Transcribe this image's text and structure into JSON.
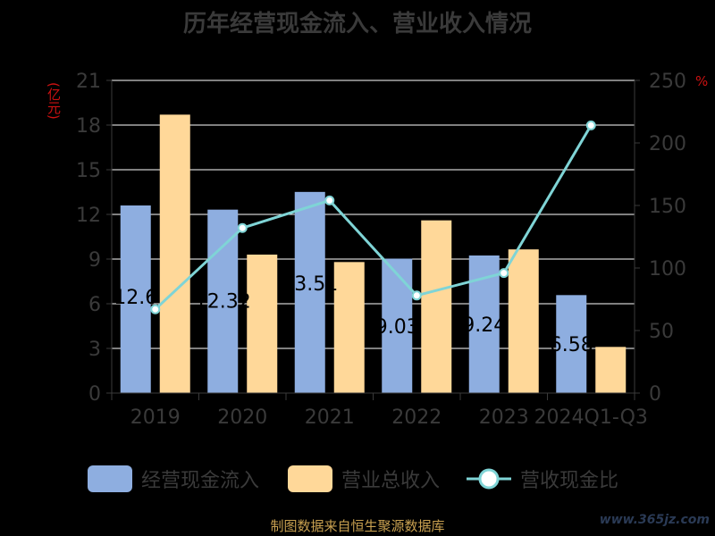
{
  "title": "历年经营现金流入、营业收入情况",
  "left_axis_label": "(亿元)",
  "right_axis_label": "%",
  "footer": "制图数据来自恒生聚源数据库",
  "watermark": "www.365jz.com",
  "colors": {
    "cash_inflow": "#8eaee0",
    "revenue": "#ffd899",
    "ratio": "#7fd4d6",
    "axis_text": "#3a3a3a",
    "grid": "#ffffff",
    "axis_label_red": "#cc1111"
  },
  "legend": [
    {
      "label": "经营现金流入",
      "kind": "bar",
      "color": "#8eaee0"
    },
    {
      "label": "营业总收入",
      "kind": "bar",
      "color": "#ffd899"
    },
    {
      "label": "营收现金比",
      "kind": "line",
      "color": "#7fd4d6"
    }
  ],
  "chart_data": {
    "type": "bar",
    "title": "历年经营现金流入、营业收入情况",
    "categories": [
      "2019",
      "2020",
      "2021",
      "2022",
      "2023",
      "2024Q1-Q3"
    ],
    "series": [
      {
        "name": "经营现金流入",
        "type": "bar",
        "axis": "left",
        "values": [
          12.6,
          12.32,
          13.51,
          9.03,
          9.24,
          6.58
        ],
        "data_labels": [
          "12.6",
          "12.32",
          "13.51",
          "9.03",
          "9.24",
          "6.58"
        ]
      },
      {
        "name": "营业总收入",
        "type": "bar",
        "axis": "left",
        "values": [
          18.7,
          9.3,
          8.8,
          11.6,
          9.65,
          3.1
        ]
      },
      {
        "name": "营收现金比",
        "type": "line",
        "axis": "right",
        "values": [
          67,
          132,
          154,
          78,
          96,
          214
        ]
      }
    ],
    "ylabel_left": "(亿元)",
    "ylabel_right": "%",
    "ylim_left": [
      0,
      21
    ],
    "yticks_left": [
      0,
      3,
      6,
      9,
      12,
      15,
      18,
      21
    ],
    "ylim_right": [
      0,
      250
    ],
    "yticks_right": [
      0,
      50,
      100,
      150,
      200,
      250
    ],
    "grid": true,
    "legend_position": "bottom"
  }
}
